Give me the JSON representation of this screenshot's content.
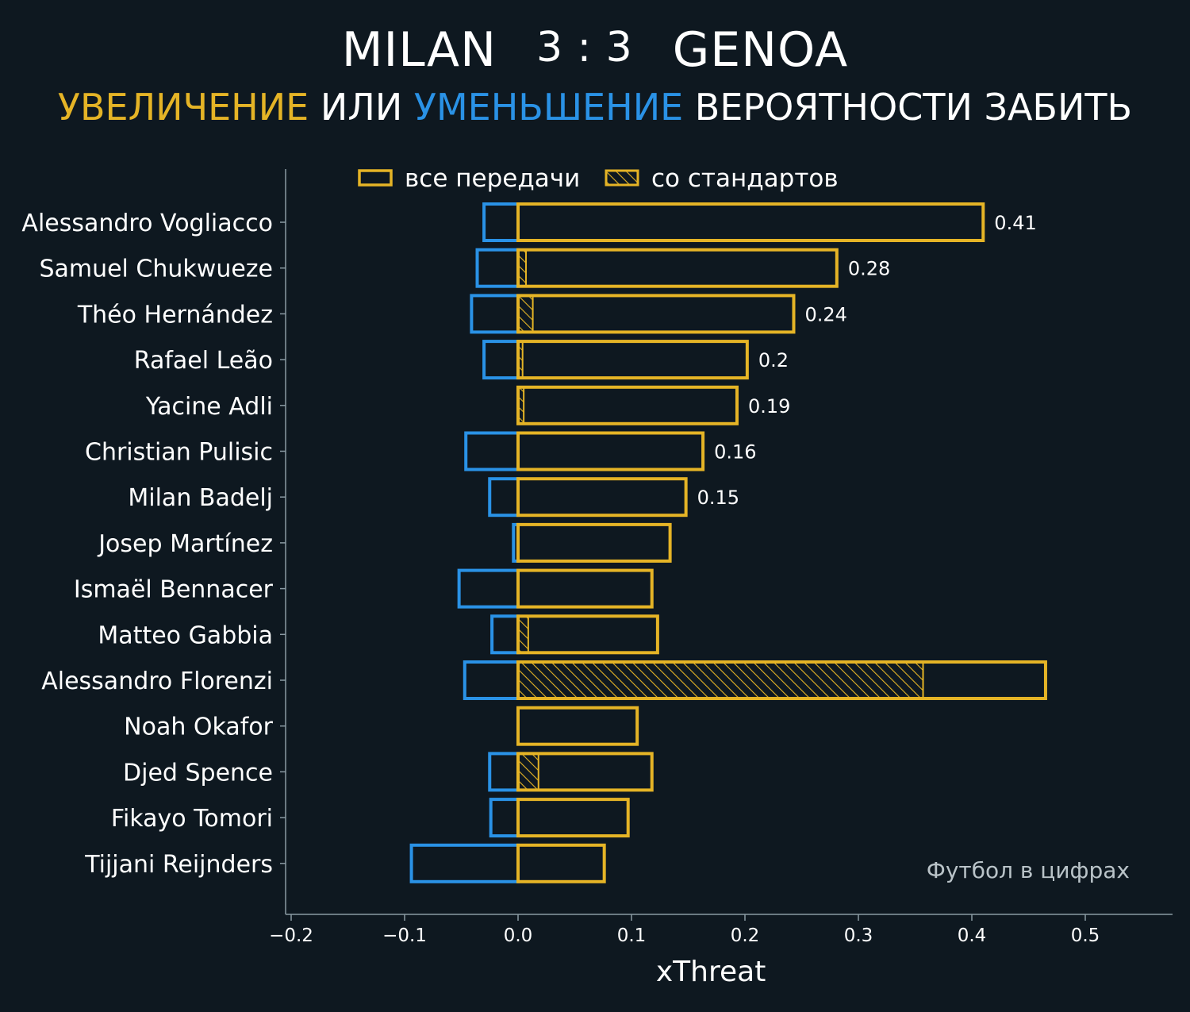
{
  "header": {
    "home_team": "MILAN",
    "score": "3 : 3",
    "away_team": "GENOA",
    "subtitle_increase": "УВЕЛИЧЕНИЕ",
    "subtitle_or": "ИЛИ",
    "subtitle_decrease": "УМЕНЬШЕНИЕ",
    "subtitle_rest": "ВЕРОЯТНОСТИ ЗАБИТЬ"
  },
  "watermark": "Футбол в цифрах",
  "colors": {
    "background": "#0e1820",
    "increase": "#e5b426",
    "decrease": "#2a92e6",
    "axis": "#8a9aa3",
    "text": "#ffffff"
  },
  "chart_data": {
    "type": "bar",
    "orientation": "horizontal",
    "xlabel": "xThreat",
    "xlim": [
      -0.2,
      0.55
    ],
    "xticks": [
      -0.2,
      -0.1,
      0.0,
      0.1,
      0.2,
      0.3,
      0.4,
      0.5
    ],
    "xtick_labels": [
      "−0.2",
      "−0.1",
      "0.0",
      "0.1",
      "0.2",
      "0.3",
      "0.4",
      "0.5"
    ],
    "legend": {
      "placement": "top-center",
      "entries": [
        {
          "label": "все передачи",
          "style": "outline"
        },
        {
          "label": "со стандартов",
          "style": "hatched"
        }
      ]
    },
    "categories": [
      "Alessandro Vogliacco",
      "Samuel Chukwueze",
      "Théo Hernández",
      "Rafael Leão",
      "Yacine Adli",
      "Christian Pulisic",
      "Milan Badelj",
      "Josep Martínez",
      "Ismaël Bennacer",
      "Matteo Gabbia",
      "Alessandro Florenzi",
      "Noah Okafor",
      "Djed Spence",
      "Fikayo Tomori",
      "Tijjani Reijnders"
    ],
    "series": [
      {
        "name": "все передачи",
        "role": "increase",
        "values": [
          0.41,
          0.281,
          0.243,
          0.202,
          0.193,
          0.163,
          0.148,
          0.134,
          0.118,
          0.123,
          0.465,
          0.105,
          0.118,
          0.097,
          0.076
        ]
      },
      {
        "name": "со стандартов",
        "role": "increase-set-pieces",
        "values": [
          0.0,
          0.007,
          0.013,
          0.004,
          0.005,
          0.0,
          0.0,
          0.0,
          0.0,
          0.009,
          0.357,
          0.0,
          0.018,
          0.0,
          0.0
        ]
      },
      {
        "role": "decrease",
        "values": [
          -0.03,
          -0.036,
          -0.041,
          -0.03,
          0.0,
          -0.046,
          -0.025,
          -0.004,
          -0.052,
          -0.023,
          -0.047,
          0.0,
          -0.025,
          -0.024,
          -0.094
        ]
      }
    ],
    "value_labels": [
      "0.41",
      "0.28",
      "0.24",
      "0.2",
      "0.19",
      "0.16",
      "0.15",
      "",
      "",
      "",
      "",
      "",
      "",
      "",
      ""
    ]
  }
}
